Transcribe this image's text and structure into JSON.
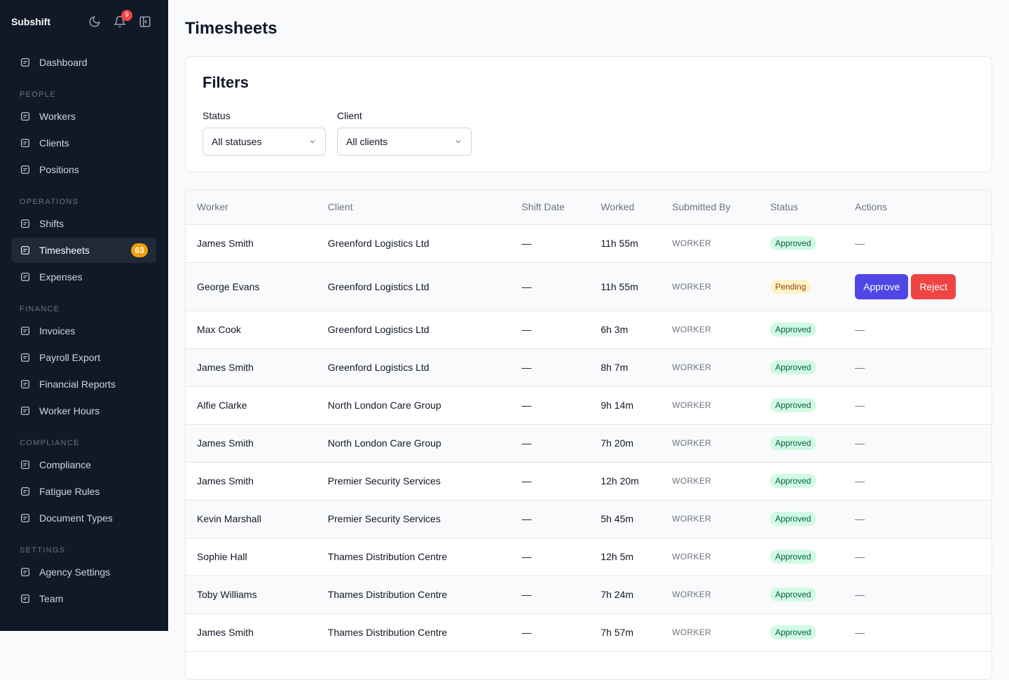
{
  "sidebar": {
    "brand": "Subshift",
    "notification_count": 9,
    "sections": [
      {
        "items": [
          {
            "label": "Dashboard"
          }
        ]
      },
      {
        "title": "PEOPLE",
        "items": [
          {
            "label": "Workers"
          },
          {
            "label": "Clients"
          },
          {
            "label": "Positions"
          }
        ]
      },
      {
        "title": "OPERATIONS",
        "items": [
          {
            "label": "Shifts"
          },
          {
            "label": "Timesheets",
            "badge": 63,
            "active": true
          },
          {
            "label": "Expenses"
          }
        ]
      },
      {
        "title": "FINANCE",
        "items": [
          {
            "label": "Invoices"
          },
          {
            "label": "Payroll Export"
          },
          {
            "label": "Financial Reports"
          },
          {
            "label": "Worker Hours"
          }
        ]
      },
      {
        "title": "COMPLIANCE",
        "items": [
          {
            "label": "Compliance"
          },
          {
            "label": "Fatigue Rules"
          },
          {
            "label": "Document Types"
          }
        ]
      },
      {
        "title": "SETTINGS",
        "items": [
          {
            "label": "Agency Settings"
          },
          {
            "label": "Team"
          }
        ]
      }
    ]
  },
  "page": {
    "title": "Timesheets"
  },
  "filters": {
    "title": "Filters",
    "fields": [
      {
        "label": "Status",
        "value": "All statuses"
      },
      {
        "label": "Client",
        "value": "All clients"
      }
    ]
  },
  "table": {
    "columns": [
      "Worker",
      "Client",
      "Shift Date",
      "Worked",
      "Submitted By",
      "Status",
      "Actions"
    ],
    "rows": [
      {
        "worker": "James Smith",
        "client": "Greenford Logistics Ltd",
        "shift_date": "—",
        "worked": "11h 55m",
        "submitted_by": "WORKER",
        "status": "Approved",
        "actions": "—"
      },
      {
        "worker": "George Evans",
        "client": "Greenford Logistics Ltd",
        "shift_date": "—",
        "worked": "11h 55m",
        "submitted_by": "WORKER",
        "status": "Pending",
        "actions": [
          "Approve",
          "Reject"
        ]
      },
      {
        "worker": "Max Cook",
        "client": "Greenford Logistics Ltd",
        "shift_date": "—",
        "worked": "6h 3m",
        "submitted_by": "WORKER",
        "status": "Approved",
        "actions": "—"
      },
      {
        "worker": "James Smith",
        "client": "Greenford Logistics Ltd",
        "shift_date": "—",
        "worked": "8h 7m",
        "submitted_by": "WORKER",
        "status": "Approved",
        "actions": "—"
      },
      {
        "worker": "Alfie Clarke",
        "client": "North London Care Group",
        "shift_date": "—",
        "worked": "9h 14m",
        "submitted_by": "WORKER",
        "status": "Approved",
        "actions": "—"
      },
      {
        "worker": "James Smith",
        "client": "North London Care Group",
        "shift_date": "—",
        "worked": "7h 20m",
        "submitted_by": "WORKER",
        "status": "Approved",
        "actions": "—"
      },
      {
        "worker": "James Smith",
        "client": "Premier Security Services",
        "shift_date": "—",
        "worked": "12h 20m",
        "submitted_by": "WORKER",
        "status": "Approved",
        "actions": "—"
      },
      {
        "worker": "Kevin Marshall",
        "client": "Premier Security Services",
        "shift_date": "—",
        "worked": "5h 45m",
        "submitted_by": "WORKER",
        "status": "Approved",
        "actions": "—"
      },
      {
        "worker": "Sophie Hall",
        "client": "Thames Distribution Centre",
        "shift_date": "—",
        "worked": "12h 5m",
        "submitted_by": "WORKER",
        "status": "Approved",
        "actions": "—"
      },
      {
        "worker": "Toby Williams",
        "client": "Thames Distribution Centre",
        "shift_date": "—",
        "worked": "7h 24m",
        "submitted_by": "WORKER",
        "status": "Approved",
        "actions": "—"
      },
      {
        "worker": "James Smith",
        "client": "Thames Distribution Centre",
        "shift_date": "—",
        "worked": "7h 57m",
        "submitted_by": "WORKER",
        "status": "Approved",
        "actions": "—"
      }
    ]
  }
}
